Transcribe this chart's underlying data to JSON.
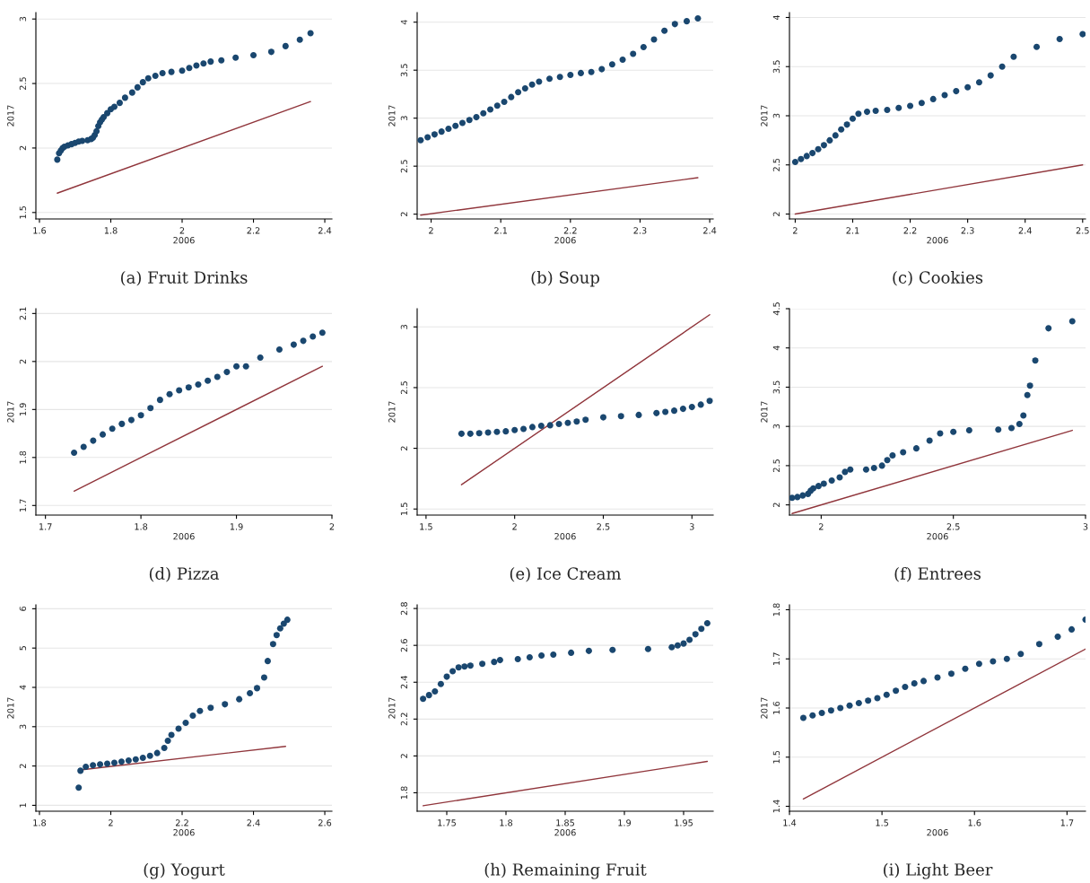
{
  "chart_data": [
    {
      "type": "scatter",
      "title": "(a) Fruit Drinks",
      "xlabel": "2006",
      "ylabel": "2017",
      "grid": "y",
      "xlim": [
        1.59,
        2.42
      ],
      "ylim": [
        1.45,
        3.05
      ],
      "xticks": [
        1.6,
        1.8,
        2,
        2.2,
        2.4
      ],
      "yticks": [
        1.5,
        2,
        2.5,
        3
      ],
      "series": [
        {
          "marker": "circle",
          "color": "#1a476f",
          "x": [
            1.65,
            1.655,
            1.66,
            1.665,
            1.67,
            1.68,
            1.69,
            1.7,
            1.71,
            1.72,
            1.735,
            1.745,
            1.75,
            1.755,
            1.76,
            1.765,
            1.77,
            1.775,
            1.78,
            1.79,
            1.8,
            1.81,
            1.825,
            1.84,
            1.86,
            1.875,
            1.89,
            1.905,
            1.925,
            1.945,
            1.97,
            2.0,
            2.02,
            2.04,
            2.06,
            2.08,
            2.11,
            2.15,
            2.2,
            2.25,
            2.29,
            2.33,
            2.36
          ],
          "values": [
            1.91,
            1.96,
            1.98,
            2.0,
            2.01,
            2.02,
            2.03,
            2.04,
            2.05,
            2.055,
            2.06,
            2.07,
            2.08,
            2.1,
            2.13,
            2.17,
            2.2,
            2.22,
            2.24,
            2.27,
            2.3,
            2.32,
            2.35,
            2.39,
            2.43,
            2.47,
            2.51,
            2.54,
            2.56,
            2.58,
            2.59,
            2.6,
            2.62,
            2.64,
            2.655,
            2.67,
            2.68,
            2.7,
            2.72,
            2.745,
            2.79,
            2.84,
            2.89
          ]
        },
        {
          "type": "line",
          "color": "#90353b",
          "x": [
            1.65,
            2.36
          ],
          "values": [
            1.65,
            2.36
          ]
        }
      ]
    },
    {
      "type": "scatter",
      "title": "(b) Soup",
      "xlabel": "2006",
      "ylabel": "2017",
      "grid": "y",
      "xlim": [
        1.98,
        2.405
      ],
      "ylim": [
        1.95,
        4.1
      ],
      "xticks": [
        2,
        2.1,
        2.2,
        2.3,
        2.4
      ],
      "yticks": [
        2,
        2.5,
        3,
        3.5,
        4
      ],
      "series": [
        {
          "marker": "circle",
          "color": "#1a476f",
          "x": [
            1.985,
            1.995,
            2.005,
            2.015,
            2.025,
            2.035,
            2.045,
            2.055,
            2.065,
            2.075,
            2.085,
            2.095,
            2.105,
            2.115,
            2.125,
            2.135,
            2.145,
            2.155,
            2.17,
            2.185,
            2.2,
            2.215,
            2.23,
            2.245,
            2.26,
            2.275,
            2.29,
            2.305,
            2.32,
            2.335,
            2.35,
            2.367,
            2.383
          ],
          "values": [
            2.77,
            2.8,
            2.83,
            2.86,
            2.89,
            2.92,
            2.95,
            2.98,
            3.01,
            3.05,
            3.09,
            3.13,
            3.17,
            3.22,
            3.27,
            3.31,
            3.35,
            3.38,
            3.41,
            3.43,
            3.45,
            3.47,
            3.48,
            3.51,
            3.56,
            3.61,
            3.67,
            3.74,
            3.82,
            3.91,
            3.98,
            4.01,
            4.04
          ]
        },
        {
          "type": "line",
          "color": "#90353b",
          "x": [
            1.985,
            2.383
          ],
          "values": [
            1.99,
            2.38
          ]
        }
      ]
    },
    {
      "type": "scatter",
      "title": "(c) Cookies",
      "xlabel": "2006",
      "ylabel": "2017",
      "grid": "y",
      "xlim": [
        1.99,
        2.505
      ],
      "ylim": [
        1.95,
        4.05
      ],
      "xticks": [
        2,
        2.1,
        2.2,
        2.3,
        2.4,
        2.5
      ],
      "yticks": [
        2,
        2.5,
        3,
        3.5,
        4
      ],
      "series": [
        {
          "marker": "circle",
          "color": "#1a476f",
          "x": [
            2.0,
            2.01,
            2.02,
            2.03,
            2.04,
            2.05,
            2.06,
            2.07,
            2.08,
            2.09,
            2.1,
            2.11,
            2.125,
            2.14,
            2.16,
            2.18,
            2.2,
            2.22,
            2.24,
            2.26,
            2.28,
            2.3,
            2.32,
            2.34,
            2.36,
            2.38,
            2.42,
            2.46,
            2.5
          ],
          "values": [
            2.53,
            2.56,
            2.59,
            2.62,
            2.66,
            2.7,
            2.75,
            2.8,
            2.86,
            2.91,
            2.97,
            3.02,
            3.04,
            3.05,
            3.06,
            3.08,
            3.1,
            3.13,
            3.17,
            3.21,
            3.25,
            3.29,
            3.34,
            3.41,
            3.5,
            3.6,
            3.7,
            3.78,
            3.83
          ]
        },
        {
          "type": "line",
          "color": "#90353b",
          "x": [
            2.0,
            2.5
          ],
          "values": [
            2.0,
            2.5
          ]
        }
      ]
    },
    {
      "type": "scatter",
      "title": "(d) Pizza",
      "xlabel": "2006",
      "ylabel": "2017",
      "grid": "y",
      "xlim": [
        1.69,
        2.0
      ],
      "ylim": [
        1.68,
        2.11
      ],
      "xticks": [
        1.7,
        1.8,
        1.9,
        2
      ],
      "yticks": [
        1.7,
        1.8,
        1.9,
        2,
        2.1
      ],
      "series": [
        {
          "marker": "circle",
          "color": "#1a476f",
          "x": [
            1.73,
            1.74,
            1.75,
            1.76,
            1.77,
            1.78,
            1.79,
            1.8,
            1.81,
            1.82,
            1.83,
            1.84,
            1.85,
            1.86,
            1.87,
            1.88,
            1.89,
            1.9,
            1.91,
            1.925,
            1.945,
            1.96,
            1.97,
            1.98,
            1.99
          ],
          "values": [
            1.81,
            1.822,
            1.835,
            1.848,
            1.86,
            1.87,
            1.878,
            1.888,
            1.903,
            1.92,
            1.932,
            1.94,
            1.946,
            1.952,
            1.96,
            1.968,
            1.978,
            1.99,
            1.99,
            2.008,
            2.025,
            2.035,
            2.043,
            2.052,
            2.06
          ]
        },
        {
          "type": "line",
          "color": "#90353b",
          "x": [
            1.73,
            1.99
          ],
          "values": [
            1.73,
            1.99
          ]
        }
      ]
    },
    {
      "type": "scatter",
      "title": "(e) Ice Cream",
      "xlabel": "2006",
      "ylabel": "2017",
      "grid": "y",
      "xlim": [
        1.45,
        3.12
      ],
      "ylim": [
        1.45,
        3.15
      ],
      "xticks": [
        1.5,
        2,
        2.5,
        3
      ],
      "yticks": [
        1.5,
        2,
        2.5,
        3
      ],
      "series": [
        {
          "marker": "circle",
          "color": "#1a476f",
          "x": [
            1.7,
            1.75,
            1.8,
            1.85,
            1.9,
            1.95,
            2.0,
            2.05,
            2.1,
            2.15,
            2.2,
            2.25,
            2.3,
            2.35,
            2.4,
            2.5,
            2.6,
            2.7,
            2.8,
            2.85,
            2.9,
            2.95,
            3.0,
            3.05,
            3.1
          ],
          "values": [
            2.12,
            2.12,
            2.125,
            2.13,
            2.135,
            2.14,
            2.15,
            2.16,
            2.175,
            2.185,
            2.19,
            2.2,
            2.21,
            2.22,
            2.235,
            2.255,
            2.265,
            2.275,
            2.29,
            2.3,
            2.31,
            2.325,
            2.34,
            2.36,
            2.39
          ]
        },
        {
          "type": "line",
          "color": "#90353b",
          "x": [
            1.7,
            3.1
          ],
          "values": [
            1.7,
            3.1
          ]
        }
      ]
    },
    {
      "type": "scatter",
      "title": "(f) Entrees",
      "xlabel": "2006",
      "ylabel": "2017",
      "grid": "y",
      "xlim": [
        1.88,
        3.0
      ],
      "ylim": [
        1.87,
        4.5
      ],
      "xticks": [
        2,
        2.5,
        3
      ],
      "yticks": [
        2,
        2.5,
        3,
        3.5,
        4,
        4.5
      ],
      "series": [
        {
          "marker": "circle",
          "color": "#1a476f",
          "x": [
            1.89,
            1.91,
            1.93,
            1.95,
            1.96,
            1.97,
            1.99,
            2.01,
            2.04,
            2.07,
            2.09,
            2.11,
            2.17,
            2.2,
            2.23,
            2.25,
            2.27,
            2.31,
            2.36,
            2.41,
            2.45,
            2.5,
            2.56,
            2.67,
            2.72,
            2.75,
            2.765,
            2.78,
            2.79,
            2.81,
            2.86,
            2.95
          ],
          "values": [
            2.09,
            2.1,
            2.12,
            2.14,
            2.18,
            2.21,
            2.24,
            2.27,
            2.31,
            2.35,
            2.42,
            2.45,
            2.45,
            2.47,
            2.5,
            2.57,
            2.63,
            2.67,
            2.72,
            2.82,
            2.91,
            2.93,
            2.95,
            2.96,
            2.98,
            3.03,
            3.14,
            3.4,
            3.52,
            3.84,
            4.25,
            4.34
          ]
        },
        {
          "type": "line",
          "color": "#90353b",
          "x": [
            1.89,
            2.95
          ],
          "values": [
            1.89,
            2.95
          ]
        }
      ]
    },
    {
      "type": "scatter",
      "title": "(g) Yogurt",
      "xlabel": "2006",
      "ylabel": "2017",
      "grid": "y",
      "xlim": [
        1.79,
        2.62
      ],
      "ylim": [
        0.85,
        6.1
      ],
      "xticks": [
        1.8,
        2,
        2.2,
        2.4,
        2.6
      ],
      "yticks": [
        1,
        2,
        3,
        4,
        5,
        6
      ],
      "series": [
        {
          "marker": "circle",
          "color": "#1a476f",
          "x": [
            1.91,
            1.915,
            1.93,
            1.95,
            1.97,
            1.99,
            2.01,
            2.03,
            2.05,
            2.07,
            2.09,
            2.11,
            2.13,
            2.15,
            2.16,
            2.17,
            2.19,
            2.21,
            2.23,
            2.25,
            2.28,
            2.32,
            2.36,
            2.39,
            2.41,
            2.43,
            2.44,
            2.455,
            2.465,
            2.475,
            2.485,
            2.495
          ],
          "values": [
            1.45,
            1.88,
            1.98,
            2.02,
            2.04,
            2.06,
            2.08,
            2.11,
            2.14,
            2.17,
            2.21,
            2.26,
            2.33,
            2.46,
            2.64,
            2.79,
            2.95,
            3.1,
            3.28,
            3.4,
            3.48,
            3.57,
            3.7,
            3.85,
            3.98,
            4.25,
            4.67,
            5.1,
            5.33,
            5.5,
            5.62,
            5.72
          ]
        },
        {
          "type": "line",
          "color": "#90353b",
          "x": [
            1.915,
            2.49
          ],
          "values": [
            1.9,
            2.5
          ]
        }
      ]
    },
    {
      "type": "scatter",
      "title": "(h) Remaining Fruit",
      "xlabel": "2006",
      "ylabel": "2017",
      "grid": "y",
      "xlim": [
        1.725,
        1.975
      ],
      "ylim": [
        1.7,
        2.82
      ],
      "xticks": [
        1.75,
        1.8,
        1.85,
        1.9,
        1.95
      ],
      "yticks": [
        1.8,
        2,
        2.2,
        2.4,
        2.6,
        2.8
      ],
      "series": [
        {
          "marker": "circle",
          "color": "#1a476f",
          "x": [
            1.73,
            1.735,
            1.74,
            1.745,
            1.75,
            1.755,
            1.76,
            1.765,
            1.77,
            1.78,
            1.79,
            1.795,
            1.81,
            1.82,
            1.83,
            1.84,
            1.855,
            1.87,
            1.89,
            1.92,
            1.94,
            1.945,
            1.95,
            1.955,
            1.96,
            1.965,
            1.97
          ],
          "values": [
            2.31,
            2.33,
            2.35,
            2.39,
            2.43,
            2.46,
            2.48,
            2.485,
            2.49,
            2.5,
            2.51,
            2.52,
            2.525,
            2.535,
            2.545,
            2.55,
            2.56,
            2.57,
            2.575,
            2.58,
            2.59,
            2.6,
            2.61,
            2.63,
            2.66,
            2.69,
            2.72
          ]
        },
        {
          "type": "line",
          "color": "#90353b",
          "x": [
            1.73,
            1.97
          ],
          "values": [
            1.73,
            1.97
          ]
        }
      ]
    },
    {
      "type": "scatter",
      "title": "(i) Light Beer",
      "xlabel": "2006",
      "ylabel": "2017",
      "grid": "y",
      "xlim": [
        1.4,
        1.72
      ],
      "ylim": [
        1.39,
        1.81
      ],
      "xticks": [
        1.4,
        1.5,
        1.6,
        1.7
      ],
      "yticks": [
        1.4,
        1.5,
        1.6,
        1.7,
        1.8
      ],
      "series": [
        {
          "marker": "circle",
          "color": "#1a476f",
          "x": [
            1.415,
            1.425,
            1.435,
            1.445,
            1.455,
            1.465,
            1.475,
            1.485,
            1.495,
            1.505,
            1.515,
            1.525,
            1.535,
            1.545,
            1.56,
            1.575,
            1.59,
            1.605,
            1.62,
            1.635,
            1.65,
            1.67,
            1.69,
            1.705,
            1.72
          ],
          "values": [
            1.58,
            1.585,
            1.59,
            1.595,
            1.6,
            1.605,
            1.61,
            1.615,
            1.62,
            1.627,
            1.635,
            1.643,
            1.65,
            1.655,
            1.662,
            1.67,
            1.68,
            1.69,
            1.695,
            1.7,
            1.71,
            1.73,
            1.745,
            1.76,
            1.78
          ]
        },
        {
          "type": "line",
          "color": "#90353b",
          "x": [
            1.415,
            1.72
          ],
          "values": [
            1.415,
            1.72
          ]
        }
      ]
    }
  ]
}
